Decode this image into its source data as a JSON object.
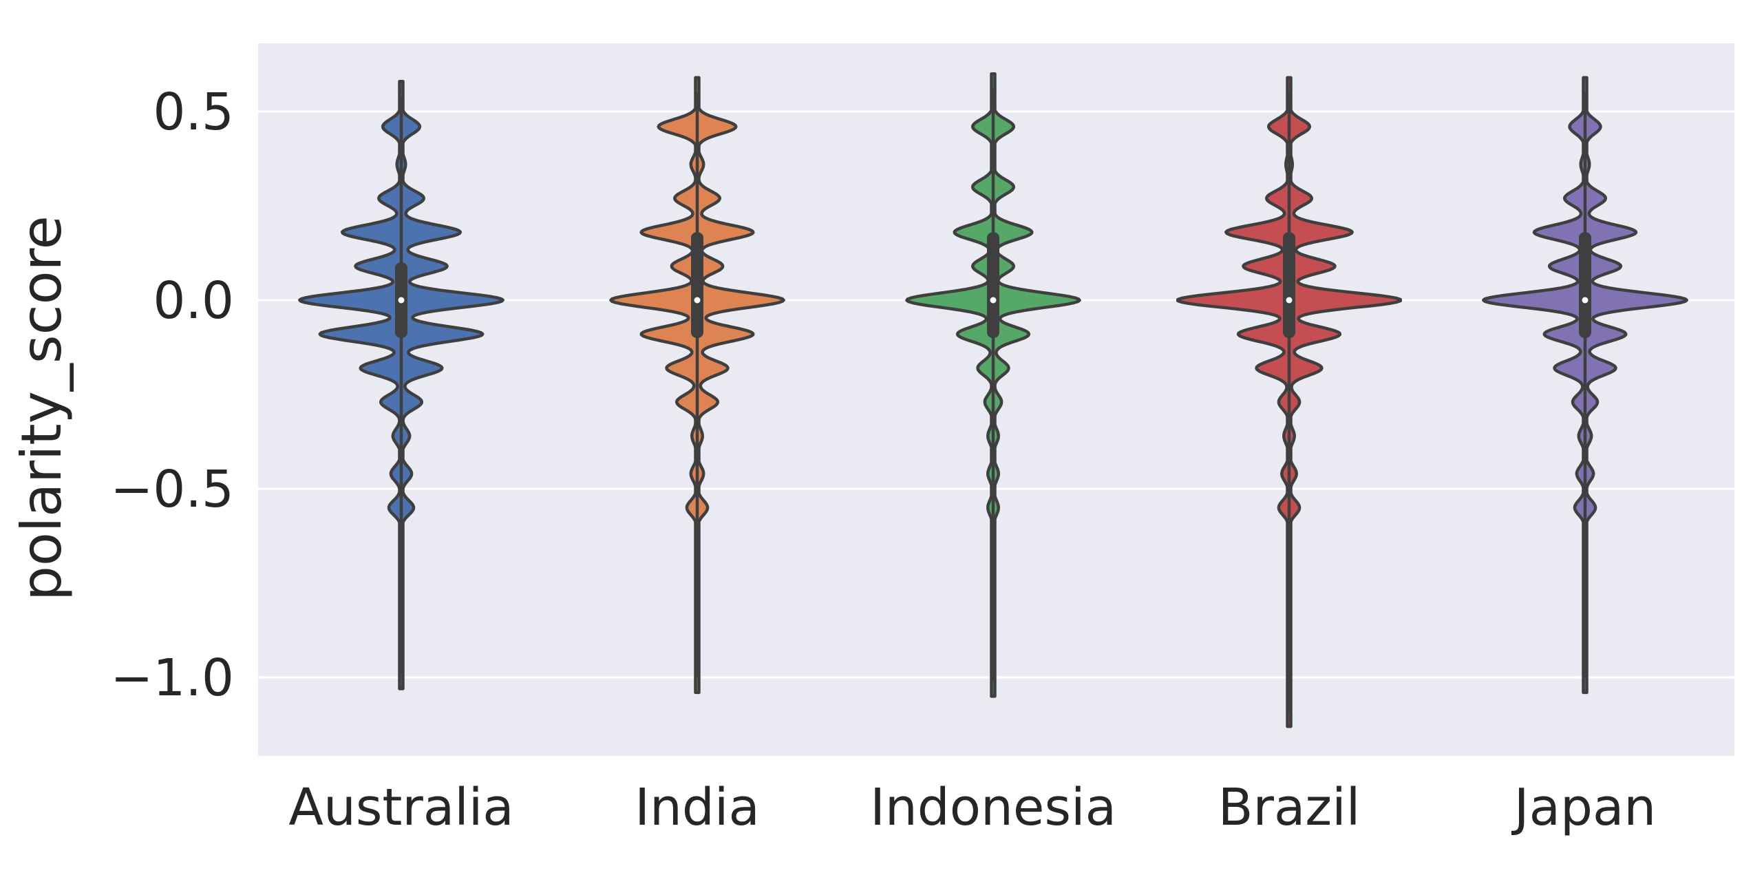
{
  "chart_data": {
    "type": "violin",
    "title": "",
    "xlabel": "",
    "ylabel": "polarity_score",
    "ylim": [
      -1.2,
      0.68
    ],
    "yticks": [
      0.5,
      0.0,
      -0.5,
      -1.0
    ],
    "ytick_labels": [
      "0.5",
      "0.0",
      "−0.5",
      "−1.0"
    ],
    "grid": true,
    "background": "#eaeaf2",
    "categories": [
      "Australia",
      "India",
      "Indonesia",
      "Brazil",
      "Japan"
    ],
    "series": [
      {
        "category": "Australia",
        "color": "#4c72b0",
        "min": -1.03,
        "max": 0.58,
        "q1": -0.1,
        "median": 0.0,
        "q3": 0.1,
        "peaks": [
          [
            0.46,
            0.18
          ],
          [
            0.36,
            0.04
          ],
          [
            0.27,
            0.22
          ],
          [
            0.18,
            0.58
          ],
          [
            0.09,
            0.45
          ],
          [
            0.0,
            1.0
          ],
          [
            -0.09,
            0.8
          ],
          [
            -0.18,
            0.4
          ],
          [
            -0.27,
            0.2
          ],
          [
            -0.36,
            0.08
          ],
          [
            -0.46,
            0.1
          ],
          [
            -0.55,
            0.12
          ]
        ]
      },
      {
        "category": "India",
        "color": "#dd8452",
        "min": -1.04,
        "max": 0.59,
        "q1": -0.1,
        "median": 0.0,
        "q3": 0.18,
        "peaks": [
          [
            0.46,
            0.38
          ],
          [
            0.36,
            0.06
          ],
          [
            0.27,
            0.22
          ],
          [
            0.18,
            0.55
          ],
          [
            0.09,
            0.25
          ],
          [
            0.0,
            0.85
          ],
          [
            -0.09,
            0.55
          ],
          [
            -0.18,
            0.3
          ],
          [
            -0.27,
            0.2
          ],
          [
            -0.36,
            0.05
          ],
          [
            -0.46,
            0.06
          ],
          [
            -0.55,
            0.1
          ]
        ]
      },
      {
        "category": "Indonesia",
        "color": "#55a868",
        "min": -1.05,
        "max": 0.6,
        "q1": -0.1,
        "median": 0.0,
        "q3": 0.18,
        "peaks": [
          [
            0.46,
            0.2
          ],
          [
            0.3,
            0.2
          ],
          [
            0.18,
            0.38
          ],
          [
            0.09,
            0.2
          ],
          [
            0.0,
            0.85
          ],
          [
            -0.09,
            0.35
          ],
          [
            -0.18,
            0.15
          ],
          [
            -0.27,
            0.08
          ],
          [
            -0.36,
            0.05
          ],
          [
            -0.46,
            0.05
          ],
          [
            -0.55,
            0.05
          ]
        ]
      },
      {
        "category": "Brazil",
        "color": "#c44e52",
        "min": -1.13,
        "max": 0.59,
        "q1": -0.1,
        "median": 0.0,
        "q3": 0.18,
        "peaks": [
          [
            0.46,
            0.2
          ],
          [
            0.36,
            0.03
          ],
          [
            0.27,
            0.22
          ],
          [
            0.18,
            0.62
          ],
          [
            0.09,
            0.45
          ],
          [
            0.0,
            1.1
          ],
          [
            -0.09,
            0.5
          ],
          [
            -0.18,
            0.32
          ],
          [
            -0.27,
            0.1
          ],
          [
            -0.36,
            0.05
          ],
          [
            -0.46,
            0.07
          ],
          [
            -0.55,
            0.1
          ]
        ]
      },
      {
        "category": "Japan",
        "color": "#8172b3",
        "min": -1.04,
        "max": 0.59,
        "q1": -0.1,
        "median": 0.0,
        "q3": 0.18,
        "peaks": [
          [
            0.46,
            0.15
          ],
          [
            0.36,
            0.04
          ],
          [
            0.27,
            0.2
          ],
          [
            0.18,
            0.5
          ],
          [
            0.09,
            0.35
          ],
          [
            0.0,
            1.0
          ],
          [
            -0.09,
            0.4
          ],
          [
            -0.18,
            0.3
          ],
          [
            -0.27,
            0.12
          ],
          [
            -0.36,
            0.06
          ],
          [
            -0.46,
            0.08
          ],
          [
            -0.55,
            0.1
          ]
        ]
      }
    ]
  }
}
